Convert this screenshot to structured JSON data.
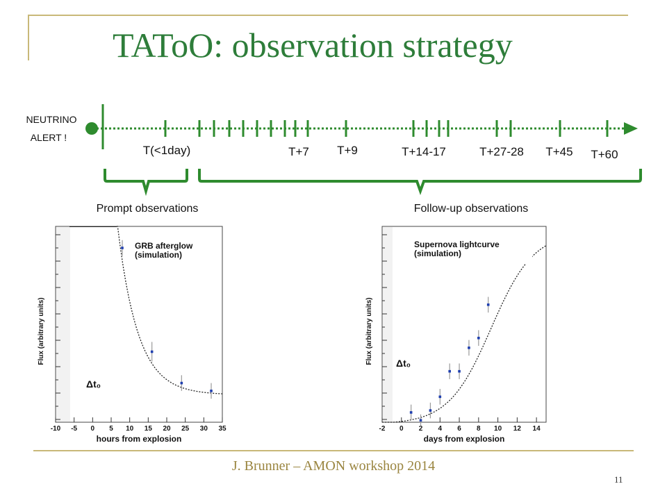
{
  "slide": {
    "title": "TAToO: observation strategy",
    "footer": "J. Brunner – AMON workshop 2014",
    "page_number": "11"
  },
  "colors": {
    "title": "#2e7d3a",
    "timeline": "#2e8b2e",
    "footer": "#9a8540",
    "frame": "#c8b878",
    "data_point": "#1f3fb0",
    "error_bar": "#999999"
  },
  "timeline": {
    "alert_label_line1": "NEUTRINO",
    "alert_label_line2": "ALERT !",
    "labels": [
      "T(<1day)",
      "T+7",
      "T+9",
      "T+14-17",
      "T+27-28",
      "T+45",
      "T+60"
    ],
    "prompt_label": "Prompt observations",
    "followup_label": "Follow-up observations"
  },
  "chart_data": [
    {
      "type": "scatter",
      "title": "GRB afterglow (simulation)",
      "xlabel": "hours from explosion",
      "ylabel": "Flux (arbitrary units)",
      "annotation": "Δt₀",
      "xlim": [
        -10,
        35
      ],
      "xticks": [
        -10,
        -5,
        0,
        5,
        10,
        15,
        20,
        25,
        30,
        35
      ],
      "points": [
        {
          "x": 8,
          "y": 0.89,
          "err": 0.04
        },
        {
          "x": 16,
          "y": 0.36,
          "err": 0.05
        },
        {
          "x": 24,
          "y": 0.2,
          "err": 0.04
        },
        {
          "x": 32,
          "y": 0.16,
          "err": 0.04
        }
      ],
      "model_curve": true
    },
    {
      "type": "scatter",
      "title": "Supernova lightcurve (simulation)",
      "xlabel": "days from explosion",
      "ylabel": "Flux (arbitrary units)",
      "annotation": "Δt₀",
      "xlim": [
        -2,
        15
      ],
      "xticks": [
        -2,
        0,
        2,
        4,
        6,
        8,
        10,
        12,
        14
      ],
      "points": [
        {
          "x": 1,
          "y": 0.05,
          "err": 0.04
        },
        {
          "x": 2,
          "y": 0.01,
          "err": 0.03
        },
        {
          "x": 3,
          "y": 0.06,
          "err": 0.04
        },
        {
          "x": 4,
          "y": 0.13,
          "err": 0.04
        },
        {
          "x": 5,
          "y": 0.26,
          "err": 0.04
        },
        {
          "x": 6,
          "y": 0.26,
          "err": 0.04
        },
        {
          "x": 7,
          "y": 0.38,
          "err": 0.04
        },
        {
          "x": 8,
          "y": 0.43,
          "err": 0.04
        },
        {
          "x": 9,
          "y": 0.6,
          "err": 0.04
        }
      ],
      "model_curve": true
    }
  ]
}
